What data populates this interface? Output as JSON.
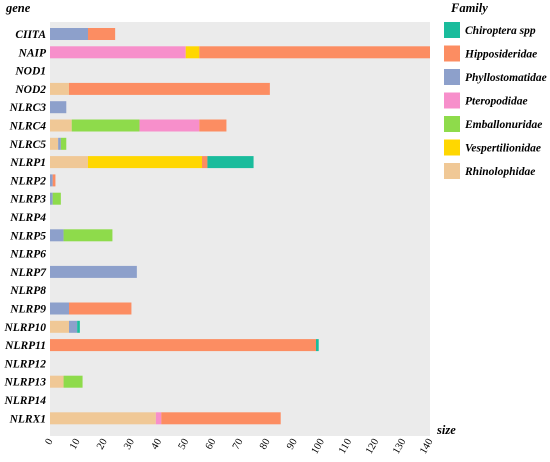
{
  "chart_data": {
    "type": "bar",
    "stacked": true,
    "orientation": "horizontal",
    "ylabel": "gene",
    "xlabel": "size",
    "xlim": [
      0,
      140
    ],
    "xticks": [
      "0",
      "10",
      "20",
      "30",
      "40",
      "50",
      "60",
      "70",
      "80",
      "90",
      "100",
      "110",
      "120",
      "130",
      "140"
    ],
    "grid": false,
    "legend_position": "right",
    "legend_title": "Family",
    "categories": [
      "CIITA",
      "NAIP",
      "NOD1",
      "NOD2",
      "NLRC3",
      "NLRC4",
      "NLRC5",
      "NLRP1",
      "NLRP2",
      "NLRP3",
      "NLRP4",
      "NLRP5",
      "NLRP6",
      "NLRP7",
      "NLRP8",
      "NLRP9",
      "NLRP10",
      "NLRP11",
      "NLRP12",
      "NLRP13",
      "NLRP14",
      "NLRX1"
    ],
    "stack_order": [
      "Rhinolophidae",
      "Phyllostomatidae",
      "Emballonuridae",
      "Pteropodidae",
      "Vespertilionidae",
      "Hipposideridae",
      "Chiroptera spp"
    ],
    "series": [
      {
        "name": "Chiroptera spp",
        "color": "#1ABC9C",
        "values": [
          0,
          0,
          0,
          0,
          0,
          0,
          0,
          17,
          0,
          0,
          0,
          0,
          0,
          0,
          0,
          0,
          1,
          1,
          0,
          0,
          0,
          0
        ]
      },
      {
        "name": "Hipposideridae",
        "color": "#FC8D62",
        "values": [
          10,
          85,
          0,
          74,
          0,
          10,
          0,
          2,
          1,
          0,
          0,
          0,
          0,
          0,
          0,
          23,
          0,
          98,
          0,
          0,
          0,
          44
        ]
      },
      {
        "name": "Phyllostomatidae",
        "color": "#8DA0CB",
        "values": [
          14,
          0,
          0,
          0,
          6,
          0,
          1,
          0,
          1,
          1,
          0,
          5,
          0,
          32,
          0,
          7,
          3,
          0,
          0,
          0,
          0,
          0
        ]
      },
      {
        "name": "Pteropodidae",
        "color": "#F78FCB",
        "values": [
          0,
          50,
          0,
          0,
          0,
          22,
          0,
          0,
          0,
          0,
          0,
          0,
          0,
          0,
          0,
          0,
          0,
          0,
          0,
          0,
          0,
          2
        ]
      },
      {
        "name": "Emballonuridae",
        "color": "#8EDB4B",
        "values": [
          0,
          0,
          0,
          0,
          0,
          25,
          2,
          0,
          0,
          3,
          0,
          18,
          0,
          0,
          0,
          0,
          0,
          0,
          0,
          7,
          0,
          0
        ]
      },
      {
        "name": "Vespertilionidae",
        "color": "#FFD700",
        "values": [
          0,
          5,
          0,
          0,
          0,
          0,
          0,
          42,
          0,
          0,
          0,
          0,
          0,
          0,
          0,
          0,
          0,
          0,
          0,
          0,
          0,
          0
        ]
      },
      {
        "name": "Rhinolophidae",
        "color": "#F0C896",
        "values": [
          0,
          0,
          0,
          7,
          0,
          8,
          3,
          14,
          0,
          0,
          0,
          0,
          0,
          0,
          0,
          0,
          7,
          0,
          0,
          5,
          0,
          39
        ]
      }
    ]
  }
}
